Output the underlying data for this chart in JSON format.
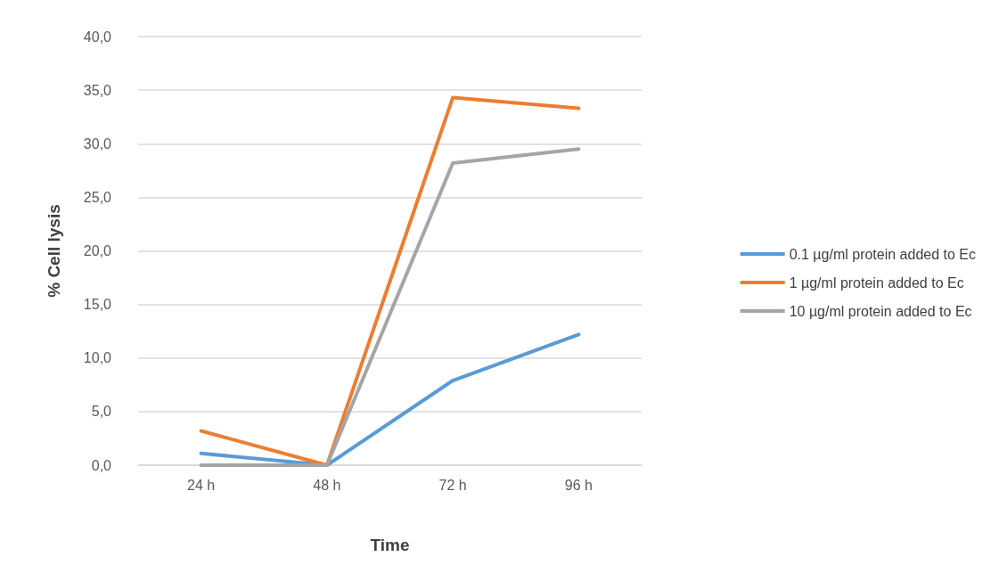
{
  "chart_data": {
    "type": "line",
    "xlabel": "Time",
    "ylabel": "% Cell lysis",
    "categories": [
      "24 h",
      "48 h",
      "72 h",
      "96 h"
    ],
    "series": [
      {
        "name": "0.1 µg/ml protein added to Ec",
        "color": "#5b9bd5",
        "values": [
          1.1,
          0,
          7.9,
          12.2
        ]
      },
      {
        "name": "1 µg/ml protein added to Ec",
        "color": "#ed7d31",
        "values": [
          3.2,
          0,
          34.3,
          33.3
        ]
      },
      {
        "name": "10 µg/ml protein added to Ec",
        "color": "#a5a5a5",
        "values": [
          0,
          0,
          28.2,
          29.5
        ]
      }
    ],
    "ylim": [
      0,
      40
    ],
    "yticks": [
      {
        "value": 0,
        "label": "0,0"
      },
      {
        "value": 5,
        "label": "5,0"
      },
      {
        "value": 10,
        "label": "10,0"
      },
      {
        "value": 15,
        "label": "15,0"
      },
      {
        "value": 20,
        "label": "20,0"
      },
      {
        "value": 25,
        "label": "25,0"
      },
      {
        "value": 30,
        "label": "30,0"
      },
      {
        "value": 35,
        "label": "35,0"
      },
      {
        "value": 40,
        "label": "40,0"
      }
    ],
    "grid": "y",
    "legend": "right",
    "marker": "none",
    "line_style": "solid"
  }
}
